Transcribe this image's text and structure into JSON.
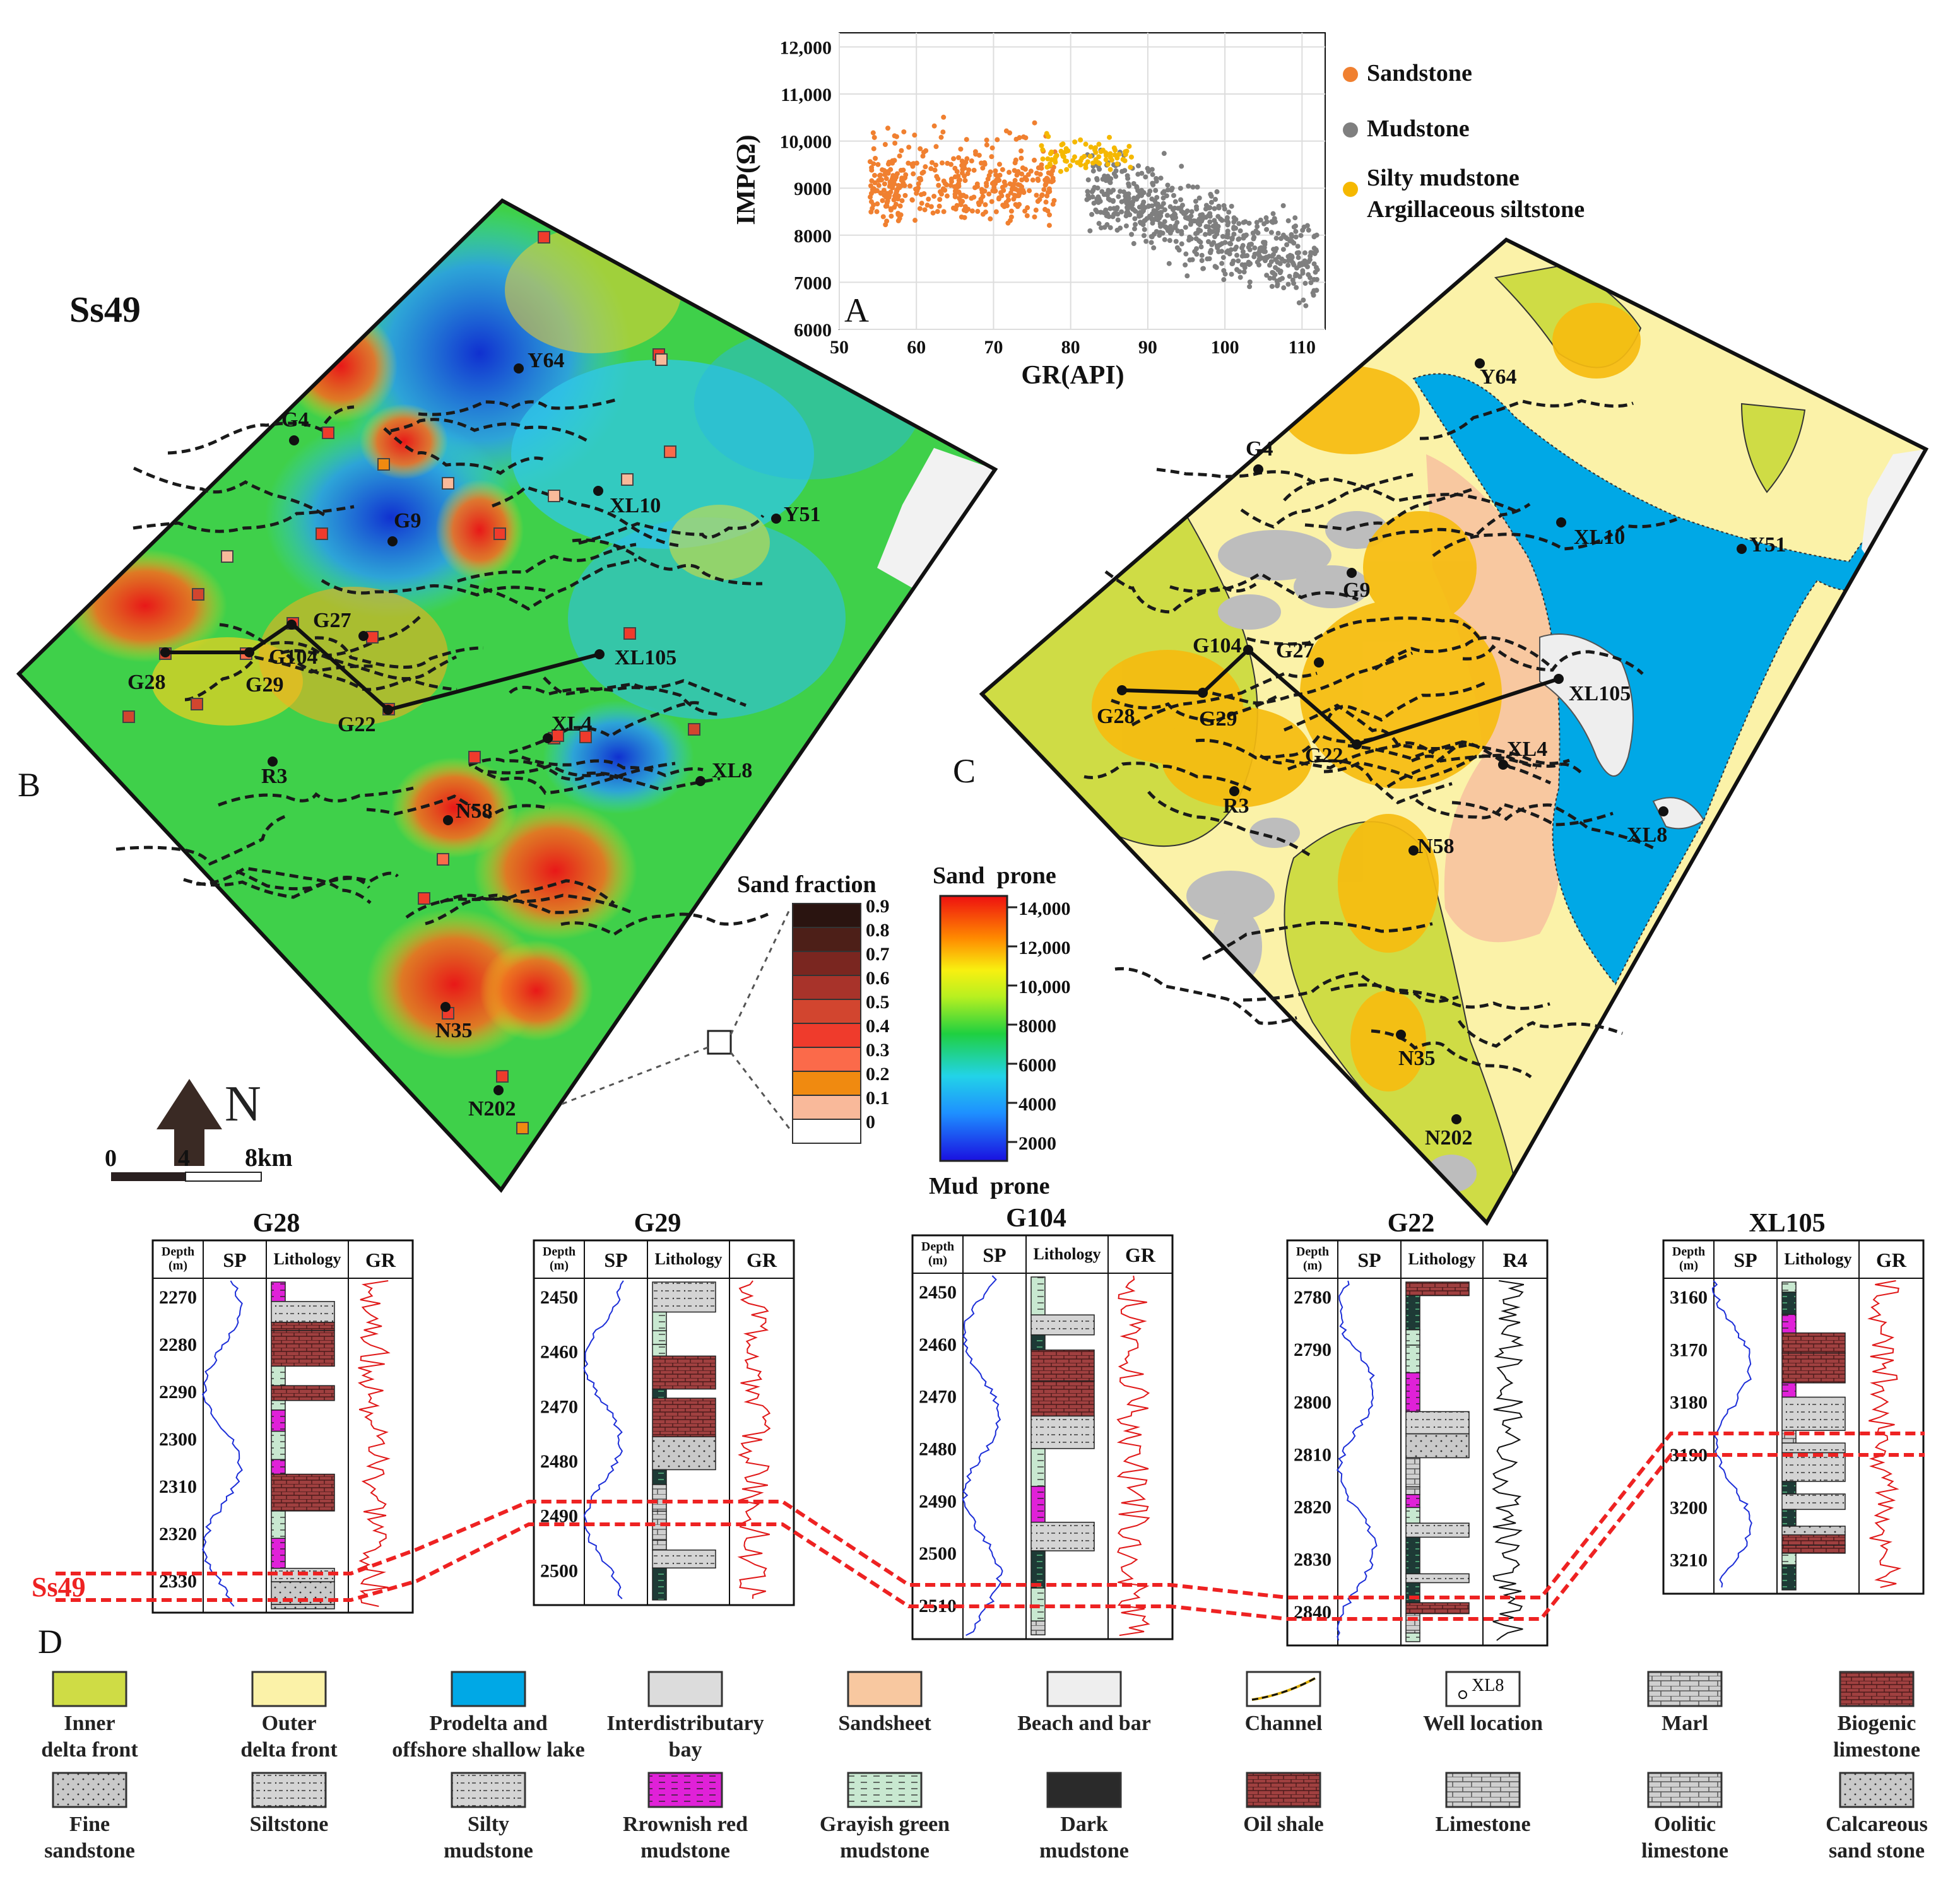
{
  "panel_labels": {
    "a": "A",
    "b": "B",
    "c": "C",
    "d": "D"
  },
  "map_title": "Ss49",
  "crossplot": {
    "xlabel": "GR(API)",
    "ylabel": "IMP(Ω)",
    "x_ticks": [
      "50",
      "60",
      "70",
      "80",
      "90",
      "100",
      "110"
    ],
    "y_ticks": [
      "6000",
      "7000",
      "8000",
      "9000",
      "10,000",
      "11,000",
      "12,000"
    ],
    "legend": [
      {
        "label": "Sandstone",
        "color": "#f08030"
      },
      {
        "label": "Mudstone",
        "color": "#7f7f7f"
      },
      {
        "label": "Silty mudstone",
        "label2": "Argillaceous siltstone",
        "color": "#f5b800"
      }
    ]
  },
  "wells": {
    "G4": "G4",
    "G9": "G9",
    "G27": "G27",
    "G104": "G104",
    "G28": "G28",
    "G29": "G29",
    "G22": "G22",
    "R3": "R3",
    "N58": "N58",
    "N35": "N35",
    "N202": "N202",
    "XL4": "XL4",
    "XL8": "XL8",
    "XL10": "XL10",
    "XL105": "XL105",
    "Y51": "Y51",
    "Y64": "Y64"
  },
  "north": {
    "label": "N"
  },
  "scale_bar": {
    "t0": "0",
    "t1": "4",
    "t2": "8km"
  },
  "sand_fraction": {
    "title": "Sand fraction",
    "labels": [
      "0.9",
      "0.8",
      "0.7",
      "0.6",
      "0.5",
      "0.4",
      "0.3",
      "0.2",
      "0.1",
      "0"
    ],
    "colors": [
      "#2a1410",
      "#4d1f18",
      "#7a2620",
      "#a8332a",
      "#d2452f",
      "#ef3b2c",
      "#fb6a4a",
      "#f08a10",
      "#f9b99a",
      "#ffffff"
    ]
  },
  "impedance_bar": {
    "top": "Sand  prone",
    "bottom": "Mud  prone",
    "labels": [
      "14,000",
      "12,000",
      "10,000",
      "8000",
      "6000",
      "4000",
      "2000"
    ]
  },
  "sections": [
    {
      "name": "G28",
      "depths": [
        "2270",
        "2280",
        "2290",
        "2300",
        "2310",
        "2320",
        "2330"
      ],
      "curve2": "GR"
    },
    {
      "name": "G29",
      "depths": [
        "2450",
        "2460",
        "2470",
        "2480",
        "2490",
        "2500"
      ],
      "curve2": "GR"
    },
    {
      "name": "G104",
      "depths": [
        "2450",
        "2460",
        "2470",
        "2480",
        "2490",
        "2500",
        "2510"
      ],
      "curve2": "GR"
    },
    {
      "name": "G22",
      "depths": [
        "2780",
        "2790",
        "2800",
        "2810",
        "2820",
        "2830",
        "2840"
      ],
      "curve2": "R4"
    },
    {
      "name": "XL105",
      "depths": [
        "3160",
        "3170",
        "3180",
        "3190",
        "3200",
        "3210"
      ],
      "curve2": "GR"
    }
  ],
  "column_headers": {
    "depth": "Depth",
    "depth_unit": "(m)",
    "sp": "SP",
    "lith": "Lithology"
  },
  "ss49_label": "Ss49",
  "legend_items": [
    {
      "l1": "Inner",
      "l2": "delta front"
    },
    {
      "l1": "Outer",
      "l2": "delta front"
    },
    {
      "l1": "Prodelta and",
      "l2": "offshore shallow lake"
    },
    {
      "l1": "Interdistributary",
      "l2": "bay"
    },
    {
      "l1": "Sandsheet",
      "l2": ""
    },
    {
      "l1": "Beach and bar",
      "l2": ""
    },
    {
      "l1": "Channel",
      "l2": ""
    },
    {
      "l1": "Well location",
      "l2": "",
      "box_text": "XL8"
    },
    {
      "l1": "Marl",
      "l2": ""
    },
    {
      "l1": "Biogenic",
      "l2": "limestone"
    },
    {
      "l1": "Fine",
      "l2": "sandstone"
    },
    {
      "l1": "Siltstone",
      "l2": ""
    },
    {
      "l1": "Silty",
      "l2": "mudstone"
    },
    {
      "l1": "Rrownish red",
      "l2": "mudstone"
    },
    {
      "l1": "Grayish green",
      "l2": "mudstone"
    },
    {
      "l1": "Dark",
      "l2": "mudstone"
    },
    {
      "l1": "Oil shale",
      "l2": ""
    },
    {
      "l1": "Limestone",
      "l2": ""
    },
    {
      "l1": "Oolitic",
      "l2": "limestone"
    },
    {
      "l1": "Calcareous",
      "l2": "sand stone"
    }
  ]
}
